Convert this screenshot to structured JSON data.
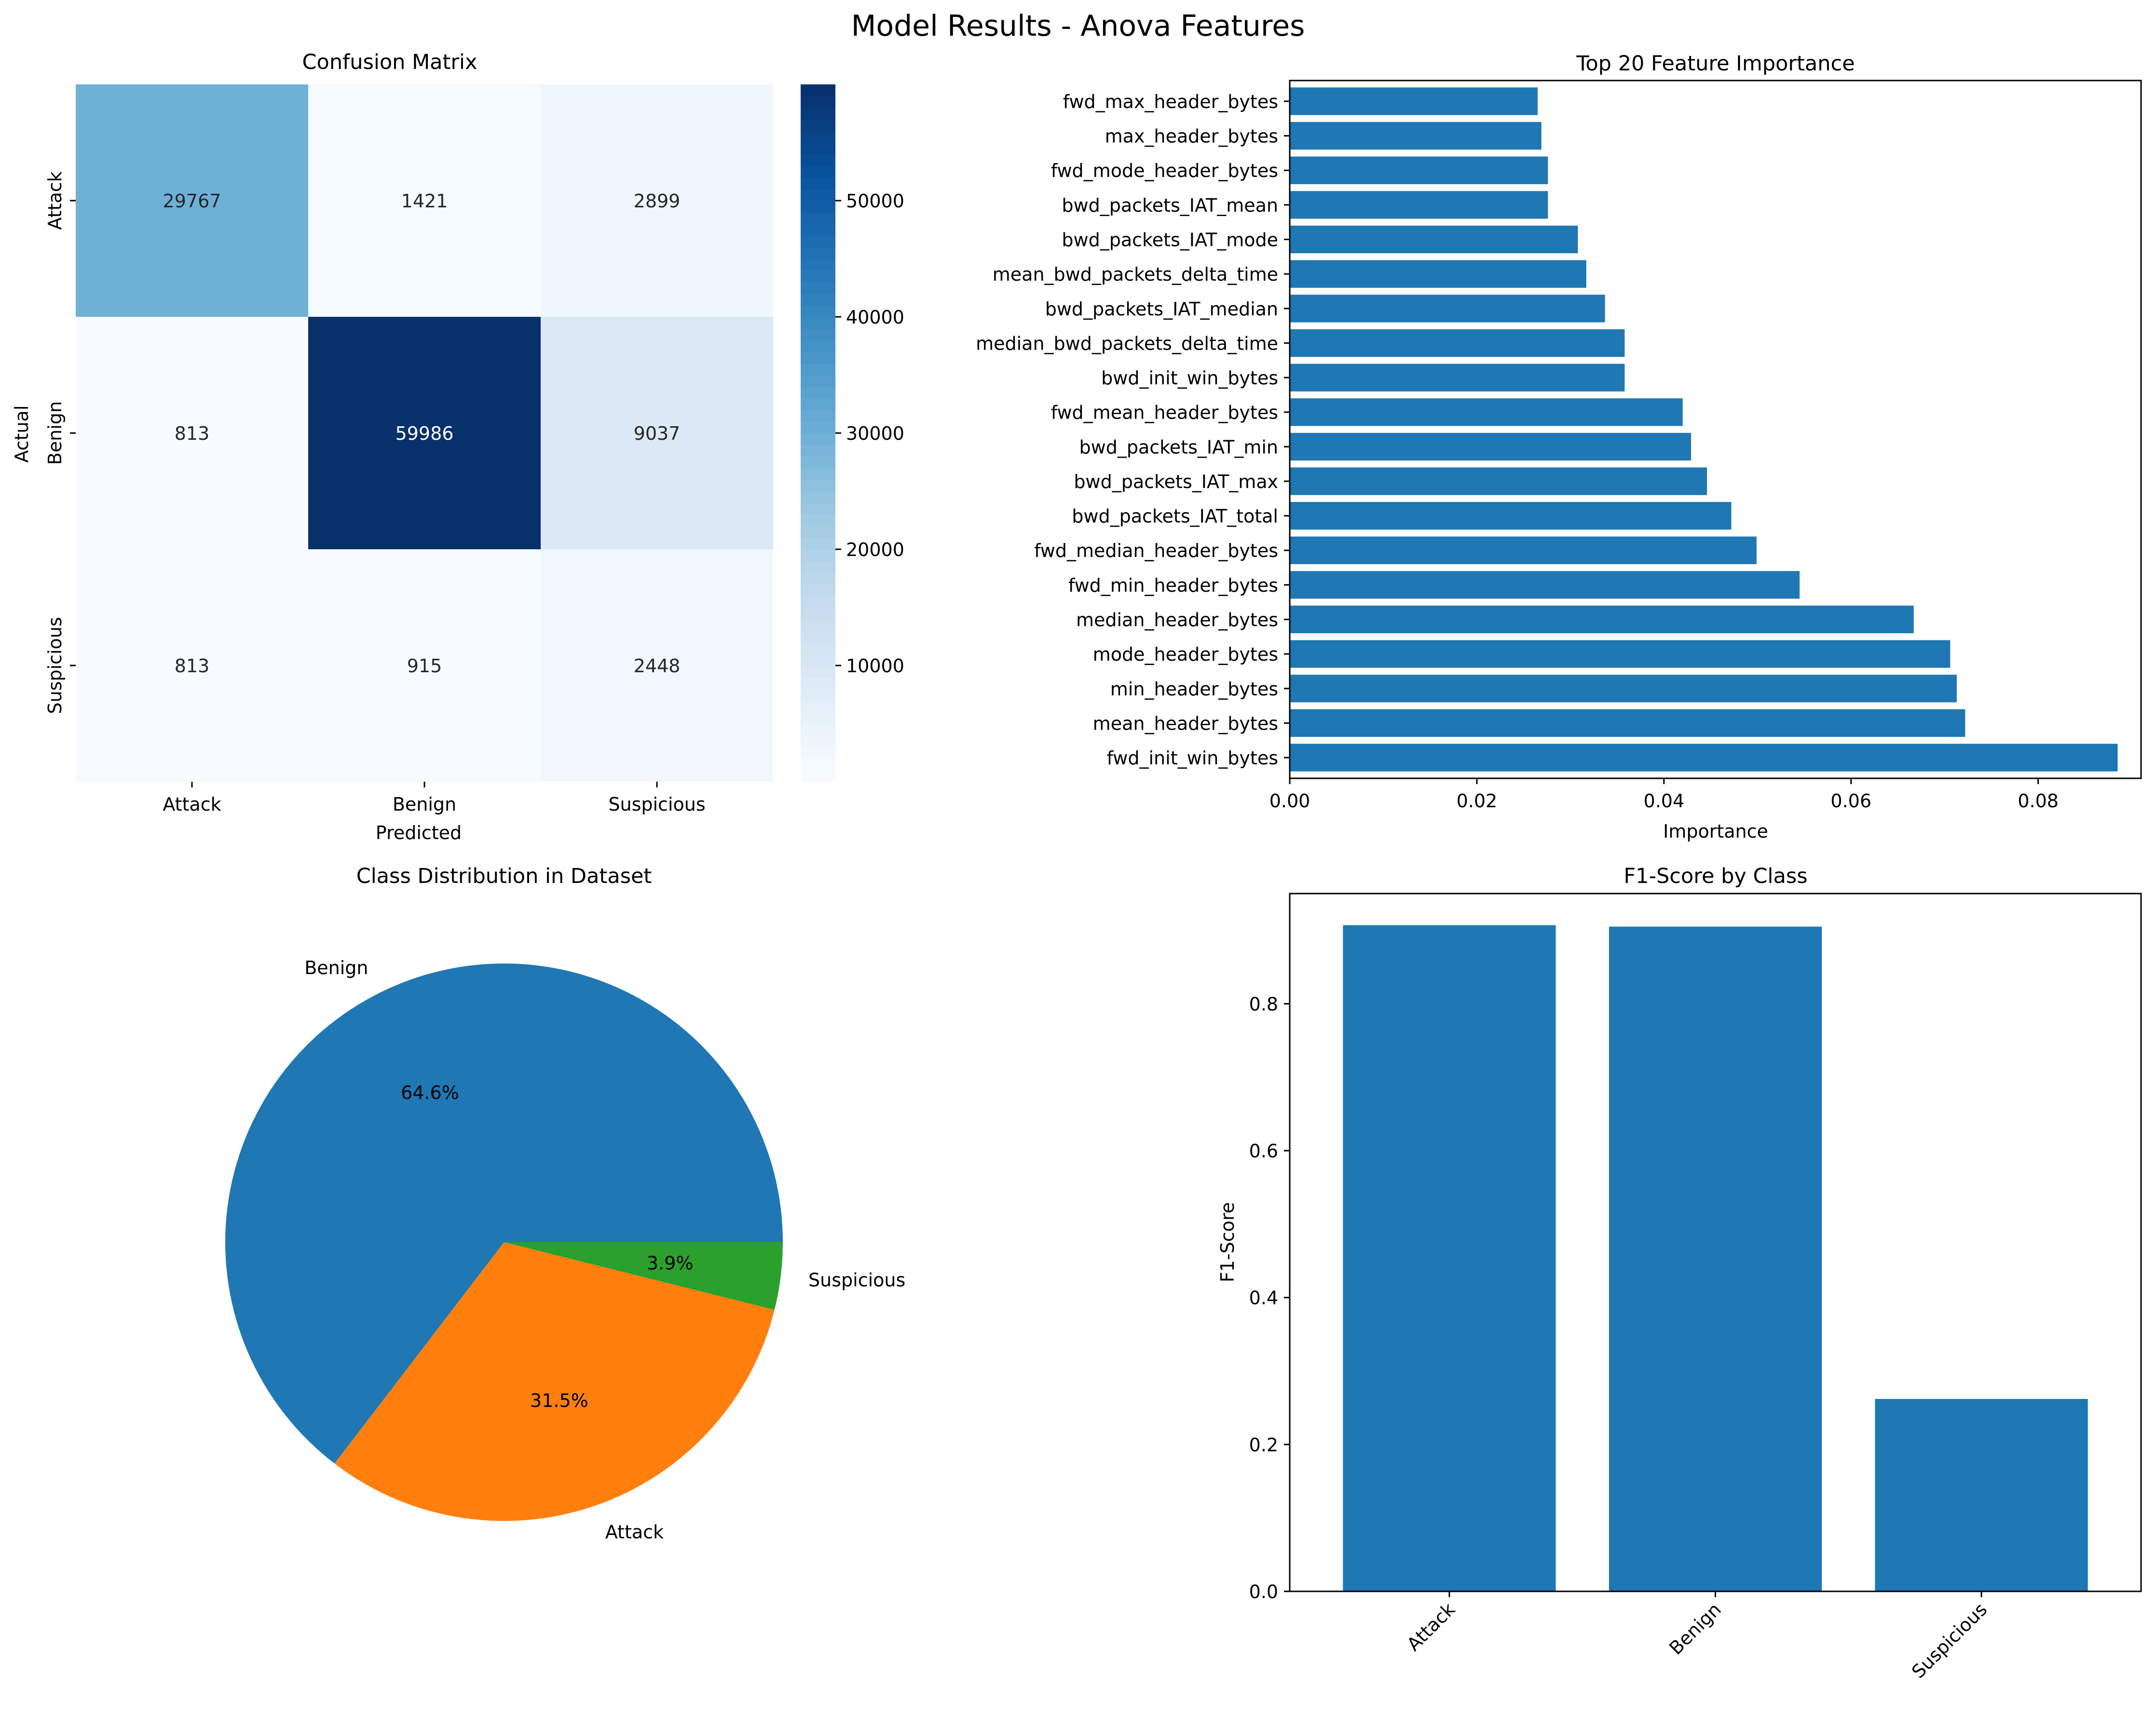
{
  "figure": {
    "suptitle": "Model Results - Anova Features"
  },
  "chart_data": [
    {
      "type": "heatmap",
      "title": "Confusion Matrix",
      "xlabel": "Predicted",
      "ylabel": "Actual",
      "x_categories": [
        "Attack",
        "Benign",
        "Suspicious"
      ],
      "y_categories": [
        "Attack",
        "Benign",
        "Suspicious"
      ],
      "values": [
        [
          29767,
          1421,
          2899
        ],
        [
          813,
          59986,
          9037
        ],
        [
          813,
          915,
          2448
        ]
      ],
      "colormap": "Blues",
      "colorbar": {
        "min": 0,
        "max": 60000,
        "ticks": [
          10000,
          20000,
          30000,
          40000,
          50000
        ]
      }
    },
    {
      "type": "bar",
      "orientation": "horizontal",
      "title": "Top 20 Feature Importance",
      "xlabel": "Importance",
      "xlim": [
        0,
        0.091
      ],
      "xticks": [
        "0.00",
        "0.02",
        "0.04",
        "0.06",
        "0.08"
      ],
      "color": "#1f77b4",
      "categories": [
        "fwd_init_win_bytes",
        "mean_header_bytes",
        "min_header_bytes",
        "mode_header_bytes",
        "median_header_bytes",
        "fwd_min_header_bytes",
        "fwd_median_header_bytes",
        "bwd_packets_IAT_total",
        "bwd_packets_IAT_max",
        "bwd_packets_IAT_min",
        "fwd_mean_header_bytes",
        "bwd_init_win_bytes",
        "median_bwd_packets_delta_time",
        "bwd_packets_IAT_median",
        "mean_bwd_packets_delta_time",
        "bwd_packets_IAT_mode",
        "bwd_packets_IAT_mean",
        "fwd_mode_header_bytes",
        "max_header_bytes",
        "fwd_max_header_bytes"
      ],
      "values": [
        0.0885,
        0.0722,
        0.0713,
        0.0706,
        0.0667,
        0.0545,
        0.0499,
        0.0472,
        0.0446,
        0.0429,
        0.042,
        0.0358,
        0.0358,
        0.0337,
        0.0317,
        0.0308,
        0.0276,
        0.0276,
        0.0269,
        0.0265
      ]
    },
    {
      "type": "pie",
      "title": "Class Distribution in Dataset",
      "slices": [
        {
          "label": "Benign",
          "pct_label": "64.6%",
          "value": 64.6,
          "color": "#1f77b4"
        },
        {
          "label": "Attack",
          "pct_label": "31.5%",
          "value": 31.5,
          "color": "#ff7f0e"
        },
        {
          "label": "Suspicious",
          "pct_label": "3.9%",
          "value": 3.9,
          "color": "#2ca02c"
        }
      ]
    },
    {
      "type": "bar",
      "title": "F1-Score by Class",
      "ylabel": "F1-Score",
      "categories": [
        "Attack",
        "Benign",
        "Suspicious"
      ],
      "values": [
        0.907,
        0.905,
        0.262
      ],
      "ylim": [
        0,
        0.95
      ],
      "yticks": [
        "0.0",
        "0.2",
        "0.4",
        "0.6",
        "0.8"
      ],
      "color": "#1f77b4"
    }
  ]
}
